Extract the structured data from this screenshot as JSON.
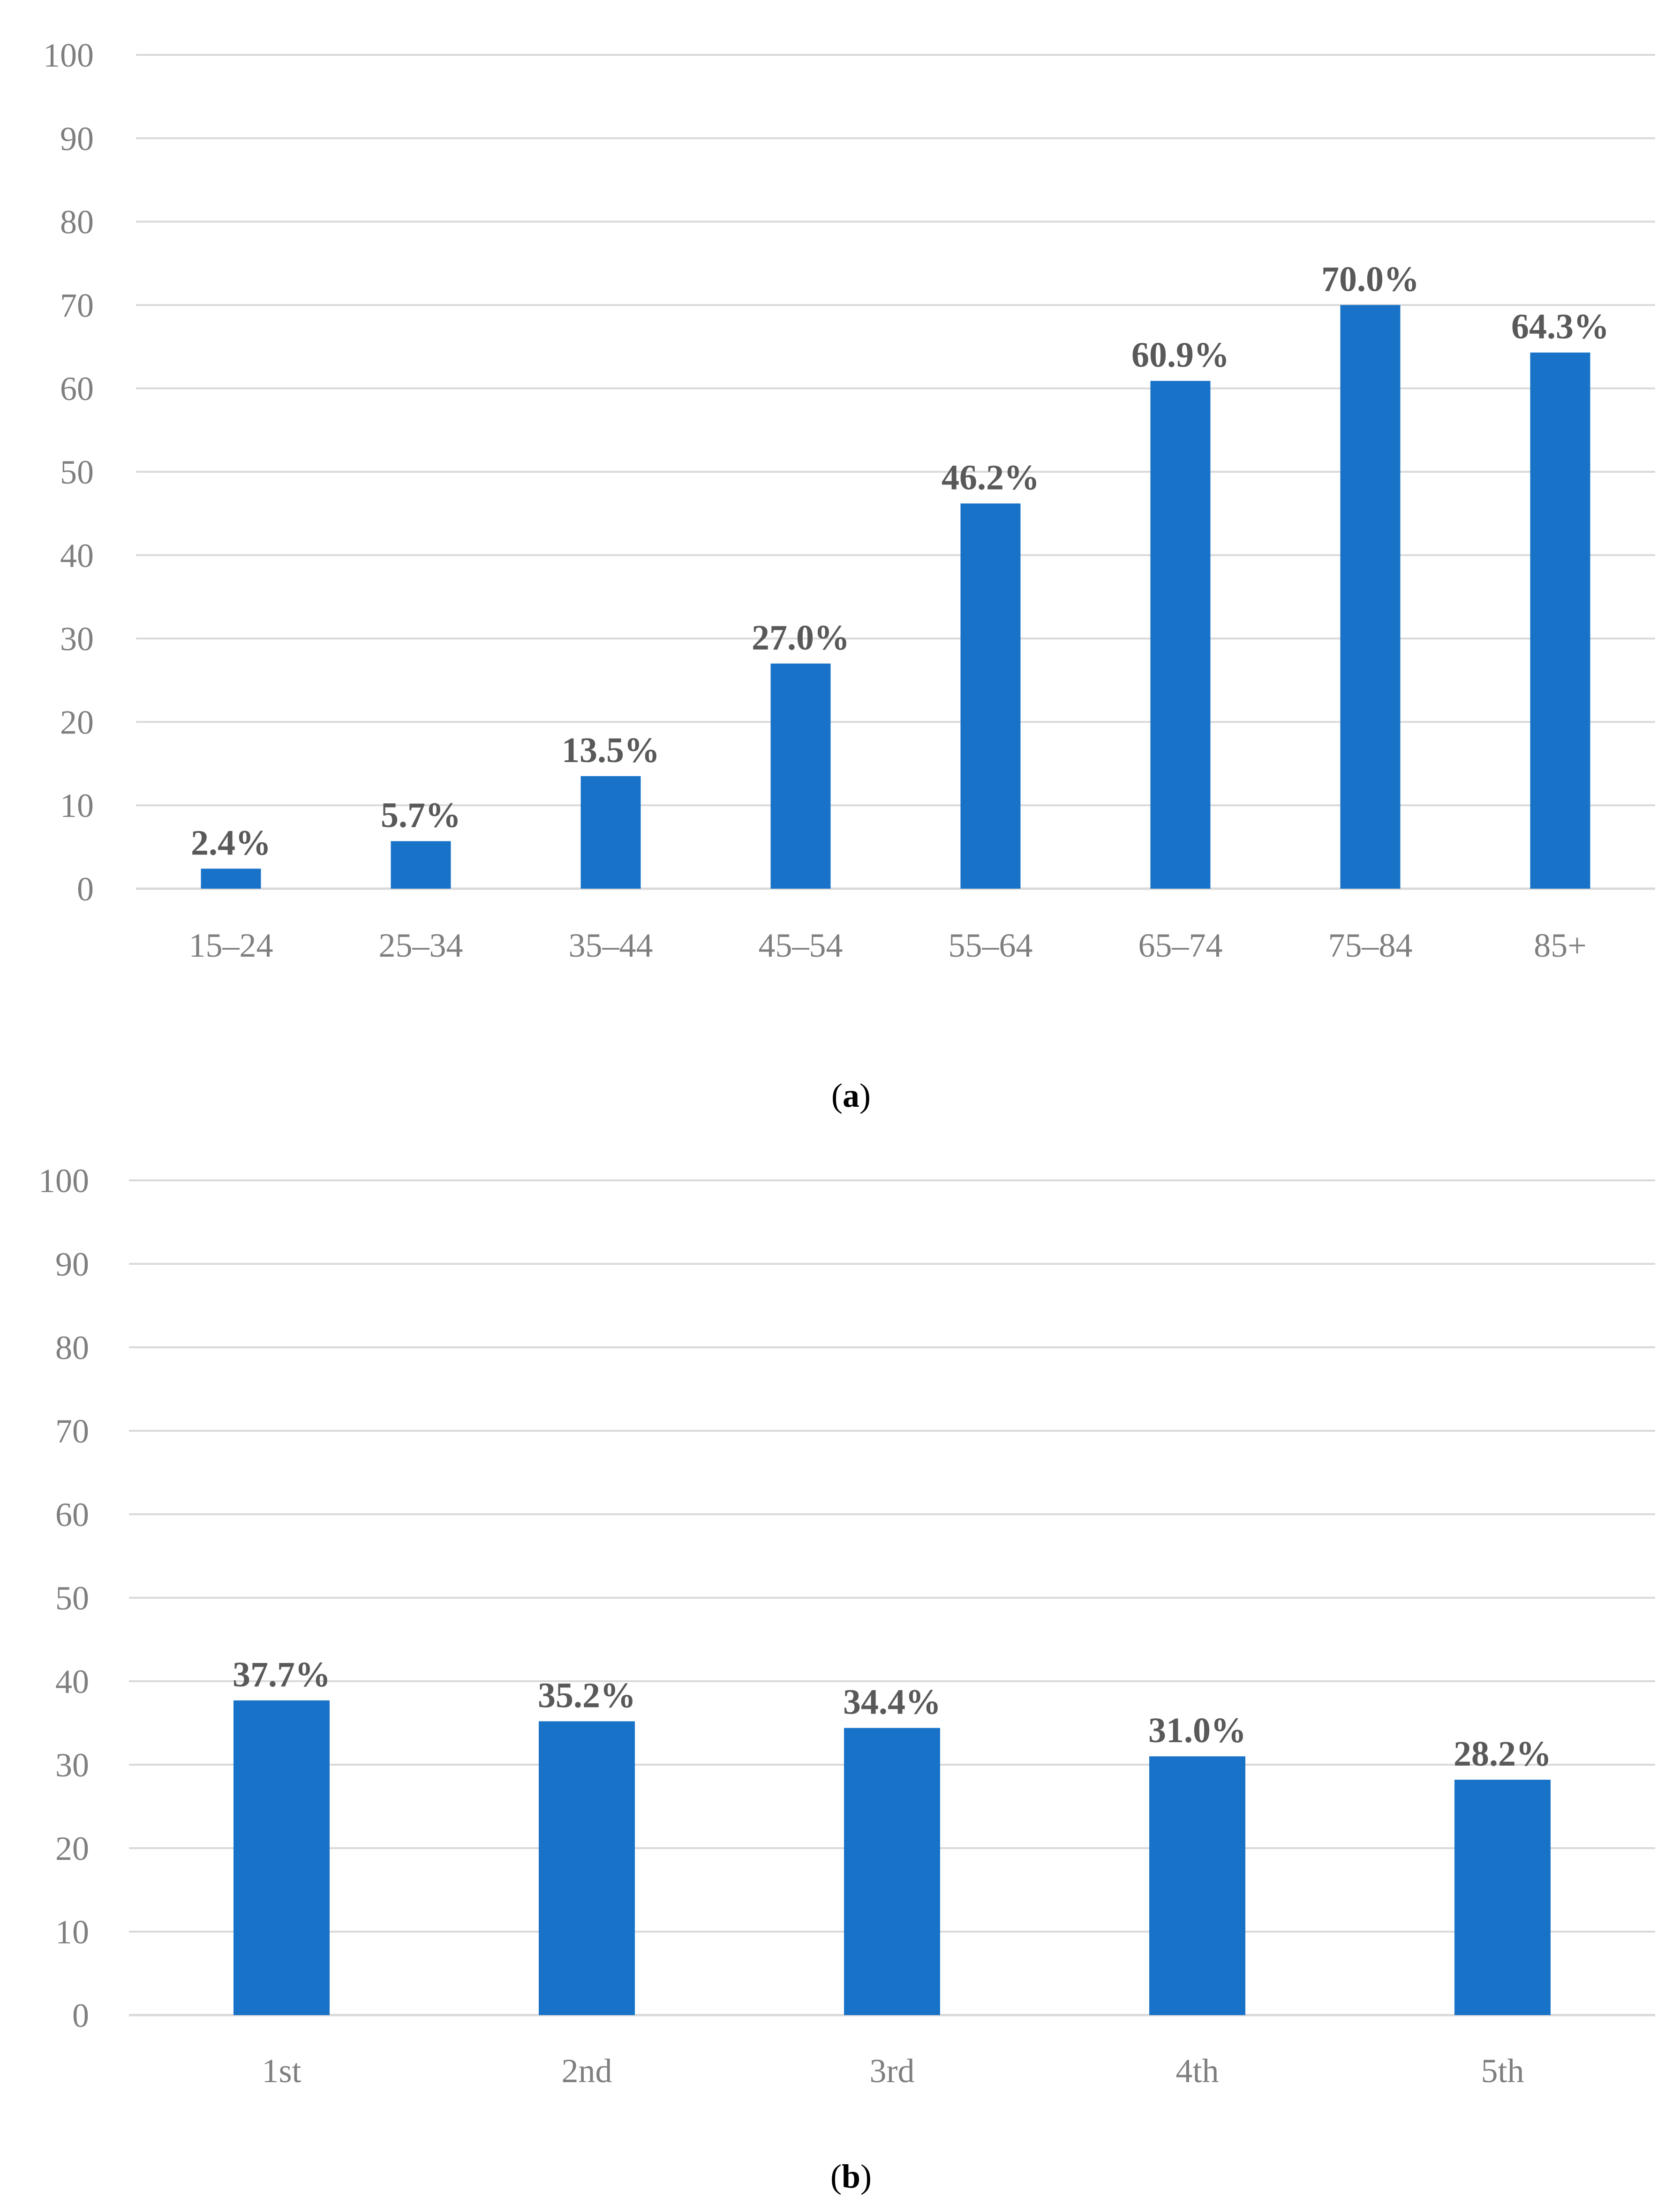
{
  "colors": {
    "bar": "#1873c8",
    "grid": "#d9d9d9",
    "tick_text": "#7f7f7f",
    "data_label_text": "#595959"
  },
  "chart_data": [
    {
      "type": "bar",
      "caption": "(a)",
      "caption_letter": "a",
      "categories": [
        "15–24",
        "25–34",
        "35–44",
        "45–54",
        "55–64",
        "65–74",
        "75–84",
        "85+"
      ],
      "values": [
        2.4,
        5.7,
        13.5,
        27.0,
        46.2,
        60.9,
        70.0,
        64.3
      ],
      "data_labels": [
        "2.4%",
        "5.7%",
        "13.5%",
        "27.0%",
        "46.2%",
        "60.9%",
        "70.0%",
        "64.3%"
      ],
      "ylim": [
        0,
        100
      ],
      "yticks": [
        0,
        10,
        20,
        30,
        40,
        50,
        60,
        70,
        80,
        90,
        100
      ],
      "grid": true,
      "legend": "none"
    },
    {
      "type": "bar",
      "caption": "(b)",
      "caption_letter": "b",
      "categories": [
        "1st",
        "2nd",
        "3rd",
        "4th",
        "5th"
      ],
      "values": [
        37.7,
        35.2,
        34.4,
        31.0,
        28.2
      ],
      "data_labels": [
        "37.7%",
        "35.2%",
        "34.4%",
        "31.0%",
        "28.2%"
      ],
      "ylim": [
        0,
        100
      ],
      "yticks": [
        0,
        10,
        20,
        30,
        40,
        50,
        60,
        70,
        80,
        90,
        100
      ],
      "grid": true,
      "legend": "none"
    }
  ]
}
